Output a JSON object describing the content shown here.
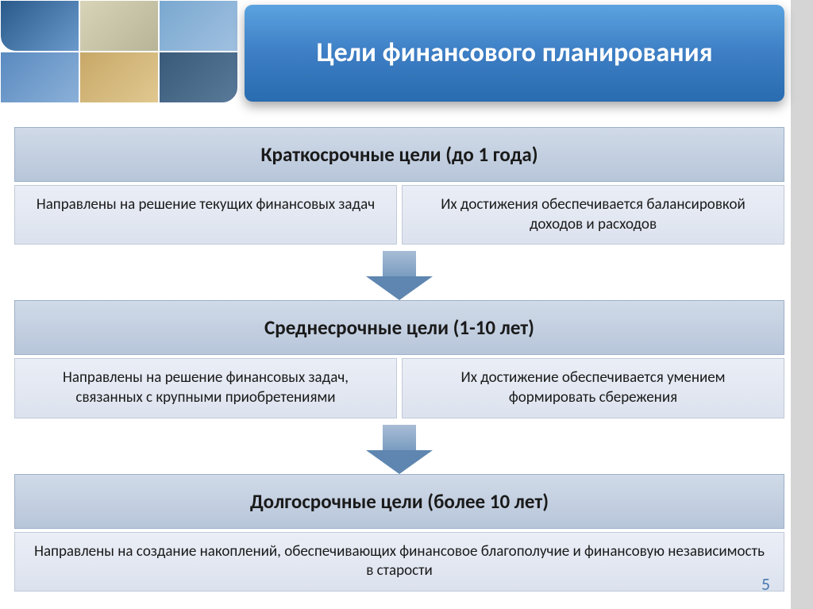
{
  "title": "Цели финансового планирования",
  "page_number": "5",
  "colors": {
    "title_bg_top": "#5ba3e0",
    "title_bg_bottom": "#2a6cb0",
    "title_text": "#ffffff",
    "header_bg_top": "#d0dae8",
    "header_bg_bottom": "#b8c6da",
    "cell_bg_top": "#eaeef6",
    "cell_bg_bottom": "#dce2ee",
    "arrow_stem": "#7a9cc0",
    "arrow_head": "#5e86b0",
    "sidebar": "#d5d5d5",
    "page_num": "#4a7ab0"
  },
  "typography": {
    "title_fontsize": 34,
    "header_fontsize": 25,
    "cell_fontsize": 19,
    "font_family": "Calibri"
  },
  "blocks": [
    {
      "header": "Краткосрочные цели (до 1 года)",
      "cells": [
        "Направлены на решение текущих финансовых задач",
        "Их достижения обеспечивается балансировкой доходов и расходов"
      ]
    },
    {
      "header": "Среднесрочные цели (1-10 лет)",
      "cells": [
        "Направлены на решение финансовых задач, связанных с крупными приобретениями",
        "Их достижение обеспечивается умением формировать сбережения"
      ]
    },
    {
      "header": "Долгосрочные цели (более 10 лет)",
      "full": "Направлены на создание накоплений, обеспечивающих финансовое благополучие и финансовую независимость в старости"
    }
  ]
}
